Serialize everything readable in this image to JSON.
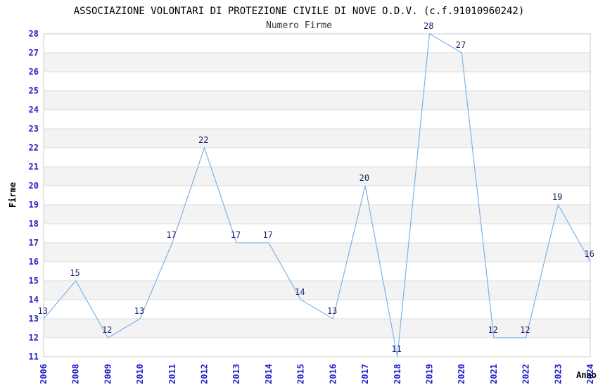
{
  "chart_data": {
    "type": "line",
    "title": "ASSOCIAZIONE VOLONTARI DI PROTEZIONE CIVILE DI NOVE O.D.V. (c.f.91010960242)",
    "subtitle": "Numero Firme",
    "xlabel": "Anno",
    "ylabel": "Firme",
    "categories": [
      "2006",
      "2008",
      "2009",
      "2010",
      "2011",
      "2012",
      "2013",
      "2014",
      "2015",
      "2016",
      "2017",
      "2018",
      "2019",
      "2020",
      "2021",
      "2022",
      "2023",
      "2024"
    ],
    "values": [
      13,
      15,
      12,
      13,
      17,
      22,
      17,
      17,
      14,
      13,
      20,
      11,
      28,
      27,
      12,
      12,
      19,
      16
    ],
    "ylim": [
      11,
      28
    ],
    "y_ticks": [
      11,
      12,
      13,
      14,
      15,
      16,
      17,
      18,
      19,
      20,
      21,
      22,
      23,
      24,
      25,
      26,
      27,
      28
    ],
    "grid": true,
    "banded_background": true,
    "legend": "none",
    "colors": {
      "line": "#7FB2E6",
      "tick_label": "#2222CC",
      "data_label": "#232270",
      "band": "#F3F3F3",
      "gridline": "#DEDEDE",
      "frame": "#C9C9C9",
      "title": "#000000",
      "subtitle": "#333333",
      "axis_label": "#000000",
      "background": "#FFFFFF"
    }
  }
}
